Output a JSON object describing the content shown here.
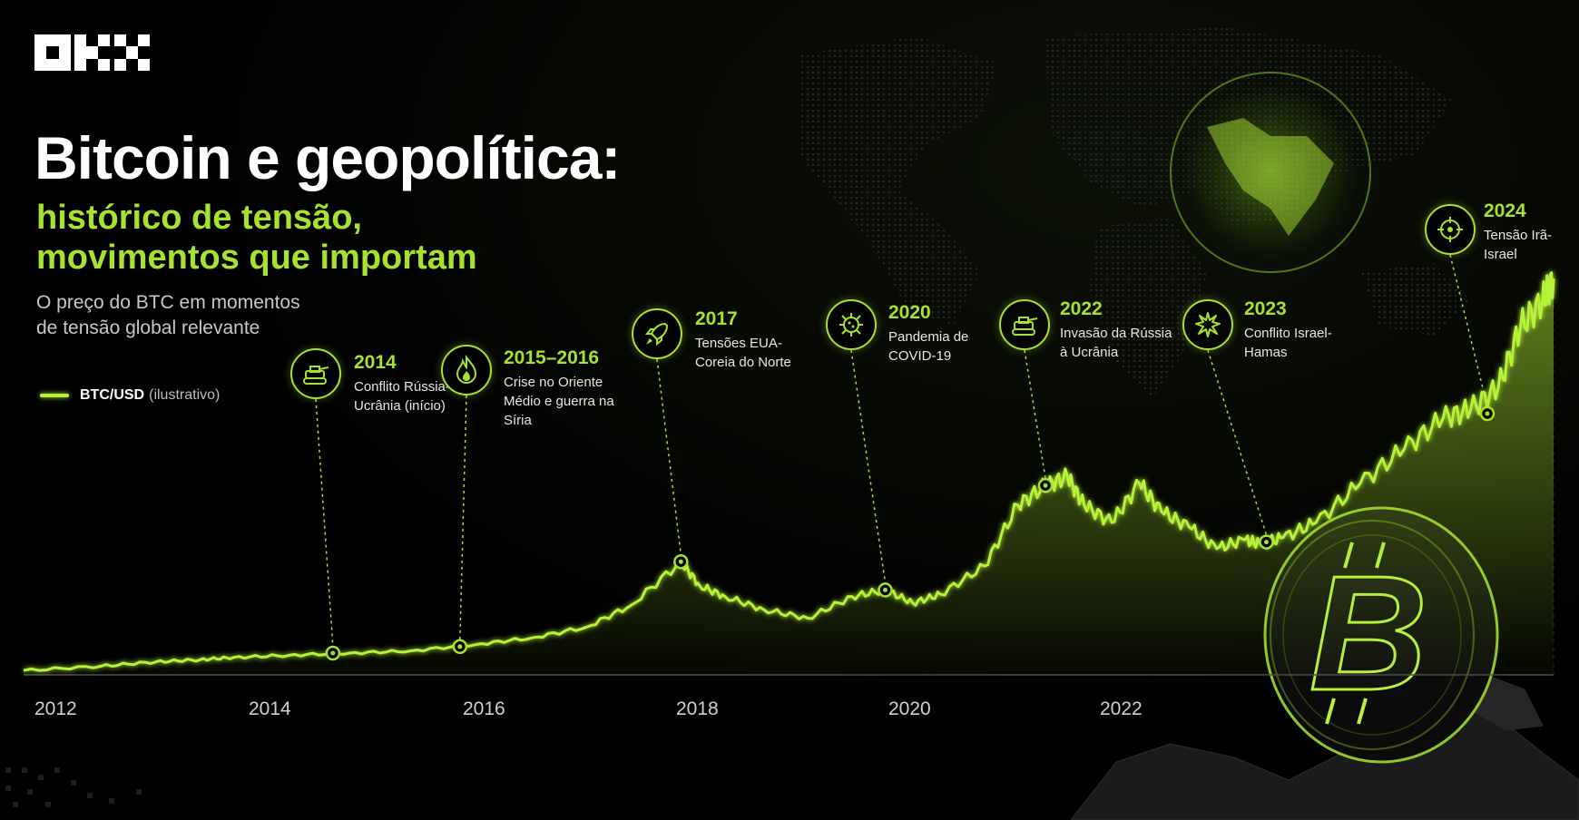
{
  "brand": {
    "logo": "OKX"
  },
  "header": {
    "title": "Bitcoin e geopolítica:",
    "subtitle_line1": "histórico de tensão,",
    "subtitle_line2": "movimentos que importam",
    "description_line1": "O preço do BTC em momentos",
    "description_line2": "de tensão global relevante"
  },
  "legend": {
    "name": "BTC/USD",
    "note": "(ilustrativo)"
  },
  "colors": {
    "accent": "#a6e22e",
    "line": "#b7f23b",
    "background": "#000000"
  },
  "events": [
    {
      "year": "2014",
      "label": "Conflito Rússia-Ucrânia (início)",
      "icon": "tank-icon"
    },
    {
      "year": "2015–2016",
      "label": "Crise no Oriente Médio e guerra na Síria",
      "icon": "fire-icon"
    },
    {
      "year": "2017",
      "label": "Tensões EUA-Coreia do Norte",
      "icon": "rocket-icon"
    },
    {
      "year": "2020",
      "label": "Pandemia de COVID-19",
      "icon": "virus-icon"
    },
    {
      "year": "2022",
      "label": "Invasão da Rússia à Ucrânia",
      "icon": "tank-icon"
    },
    {
      "year": "2023",
      "label": "Conflito Israel-Hamas",
      "icon": "explosion-icon"
    },
    {
      "year": "2024",
      "label": "Tensão Irã-Israel",
      "icon": "target-icon"
    }
  ],
  "chart_data": {
    "type": "area",
    "series": [
      {
        "name": "BTC/USD",
        "x": [
          2011.8,
          2012.5,
          2013.0,
          2013.4,
          2013.7,
          2014.2,
          2014.75,
          2015.3,
          2015.9,
          2016.4,
          2016.9,
          2017.3,
          2017.75,
          2017.92,
          2018.15,
          2018.5,
          2018.9,
          2019.3,
          2019.6,
          2019.85,
          2020.1,
          2020.5,
          2020.8,
          2021.05,
          2021.25,
          2021.4,
          2021.65,
          2021.9,
          2022.1,
          2022.35,
          2022.6,
          2022.85,
          2023.0,
          2023.2,
          2023.5,
          2023.9,
          2024.3,
          2024.65,
          2024.9,
          2025.15,
          2025.35,
          2025.55,
          2025.65
        ],
        "y": [
          2,
          4,
          6,
          7,
          8,
          9,
          10,
          11,
          14,
          17,
          22,
          32,
          52,
          41,
          36,
          30,
          26,
          36,
          39,
          33,
          37,
          50,
          78,
          87,
          91,
          78,
          70,
          88,
          75,
          68,
          58,
          62,
          60,
          63,
          70,
          88,
          104,
          118,
          122,
          132,
          160,
          172,
          182
        ]
      }
    ],
    "event_markers": [
      {
        "x": 2014.6,
        "y": 10
      },
      {
        "x": 2015.75,
        "y": 13
      },
      {
        "x": 2017.75,
        "y": 52
      },
      {
        "x": 2019.6,
        "y": 39
      },
      {
        "x": 2021.05,
        "y": 87
      },
      {
        "x": 2023.05,
        "y": 61
      },
      {
        "x": 2025.05,
        "y": 120
      }
    ],
    "x_ticks": [
      "2012",
      "2014",
      "2016",
      "2018",
      "2020",
      "2022"
    ],
    "xlim": [
      2011.8,
      2025.65
    ],
    "ylim": [
      0,
      185
    ],
    "grid": false,
    "legend_position": "left"
  }
}
